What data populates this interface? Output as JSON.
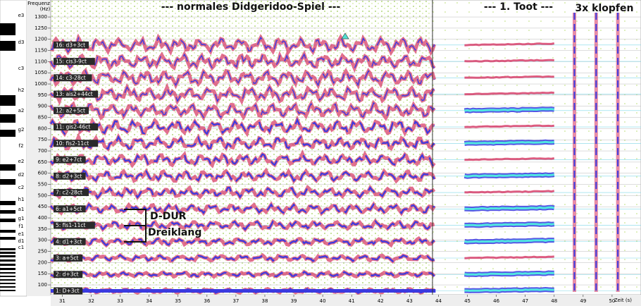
{
  "y_axis": {
    "title_line1": "Frequenz",
    "title_line2": "(Hz)",
    "range": [
      56,
      1376
    ],
    "ticks": [
      100,
      150,
      200,
      250,
      300,
      350,
      400,
      450,
      500,
      550,
      600,
      650,
      700,
      750,
      800,
      850,
      900,
      950,
      1000,
      1050,
      1100,
      1150,
      1200,
      1250,
      1300
    ]
  },
  "x_axis": {
    "title": "Zeit (s)",
    "range": [
      30.6,
      51
    ],
    "ticks": [
      31,
      32,
      33,
      34,
      35,
      36,
      37,
      38,
      39,
      40,
      41,
      42,
      43,
      44,
      45,
      46,
      47,
      48,
      49,
      50
    ]
  },
  "harmonics": [
    "1: D+3ct",
    "2: d+3ct",
    "3: a+5ct",
    "4: d1+3ct",
    "5: fis1-11ct",
    "6: a1+5ct",
    "7: c2-28ct",
    "8: d2+3ct",
    "9: e2+7ct",
    "10: fis2-11ct",
    "11: gis2-46ct",
    "12: a2+5ct",
    "13: ais2+44ct",
    "14: c3-28ct",
    "15: cis3-9ct",
    "16: d3+3ct"
  ],
  "annotations": {
    "section1": "--- normales Didgeridoo-Spiel ---",
    "section2": "--- 1. Toot ---",
    "section3": "3x klopfen",
    "chord1": "D-DUR",
    "chord2": "Dreiklang"
  },
  "piano": [
    "e3",
    "d3",
    "c3",
    "h2",
    "a2",
    "g2",
    "f2",
    "e2",
    "d2",
    "c2",
    "h1",
    "a1",
    "g1",
    "f1",
    "e1",
    "d1",
    "c1"
  ]
}
